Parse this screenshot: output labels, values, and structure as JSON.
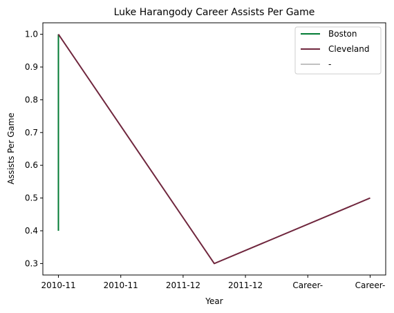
{
  "chart_data": {
    "type": "line",
    "title": "Luke Harangody Career Assists Per Game",
    "xlabel": "Year",
    "ylabel": "Assists Per Game",
    "categories": [
      "2010-11",
      "2010-11",
      "2011-12",
      "2011-12",
      "Career-",
      "Career-"
    ],
    "ylim": [
      0.265,
      1.035
    ],
    "yticks": [
      0.3,
      0.4,
      0.5,
      0.6,
      0.7,
      0.8,
      0.9,
      1.0
    ],
    "ytick_labels": [
      "0.3",
      "0.4",
      "0.5",
      "0.6",
      "0.7",
      "0.8",
      "0.9",
      "1.0"
    ],
    "grid": false,
    "legend_position": "top-right",
    "series": [
      {
        "name": "Boston",
        "color": "#007a33",
        "points": [
          [
            0,
            0.4
          ],
          [
            0,
            1.0
          ]
        ]
      },
      {
        "name": "Cleveland",
        "color": "#6f263d",
        "points": [
          [
            0,
            1.0
          ],
          [
            2.5,
            0.3
          ],
          [
            5,
            0.5
          ]
        ]
      },
      {
        "name": "-",
        "color": "#c0c0c0",
        "points": []
      }
    ]
  }
}
